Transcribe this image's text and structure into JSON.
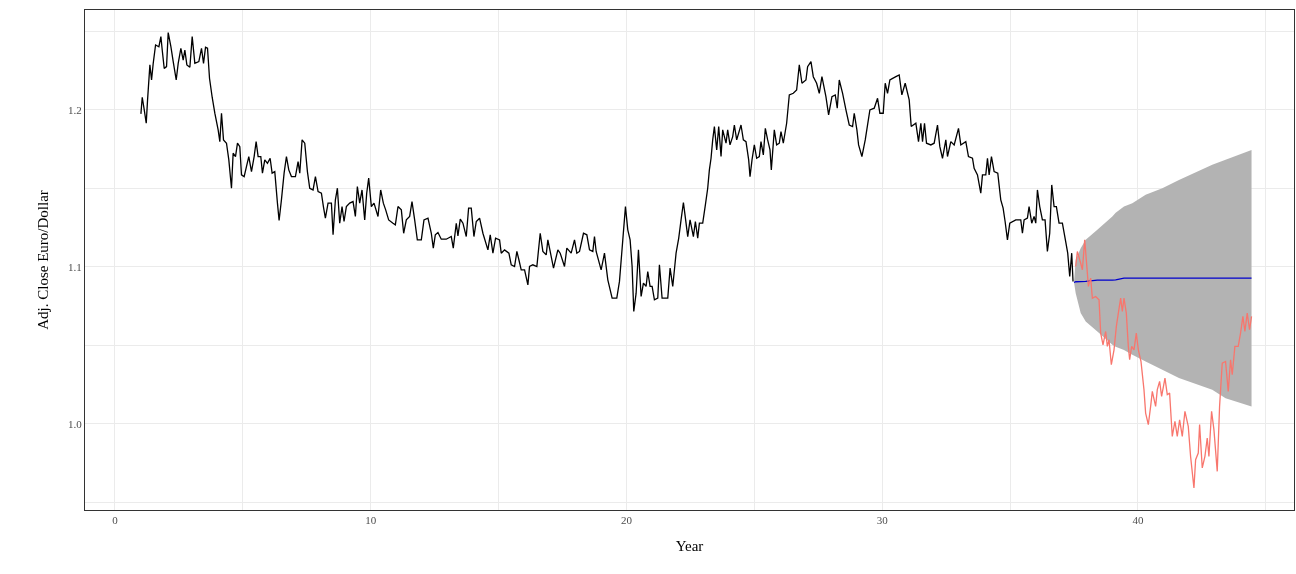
{
  "chart_data": {
    "type": "line",
    "xlabel": "Year",
    "ylabel": "Adj. Close Euro/Dollar",
    "xlim": [
      -1.17,
      46.1
    ],
    "ylim": [
      0.945,
      1.2637
    ],
    "xticks": [
      0,
      {
        "value": 5,
        "label": null
      },
      10,
      {
        "value": 15,
        "label": null
      },
      20,
      {
        "value": 25,
        "label": null
      },
      30,
      {
        "value": 35,
        "label": null
      },
      40,
      {
        "value": 45,
        "label": null
      }
    ],
    "yticks": [
      {
        "value": 0.95,
        "label": null
      },
      {
        "value": 1.0,
        "label": "1.0"
      },
      {
        "value": 1.05,
        "label": null
      },
      {
        "value": 1.1,
        "label": "1.1"
      },
      {
        "value": 1.15,
        "label": null
      },
      {
        "value": 1.2,
        "label": "1.2"
      },
      {
        "value": 1.25,
        "label": null
      }
    ],
    "grid": true,
    "marker": "none",
    "line_style": "solid",
    "series": [
      {
        "color": "#000000",
        "x": [
          1.016,
          1.068,
          1.146,
          1.224,
          1.276,
          1.367,
          1.432,
          1.497,
          1.589,
          1.719,
          1.797,
          1.849,
          1.927,
          2.018,
          2.083,
          2.188,
          2.279,
          2.396,
          2.474,
          2.578,
          2.669,
          2.734,
          2.813,
          2.93,
          3.021,
          3.125,
          3.281,
          3.385,
          3.464,
          3.542,
          3.62,
          3.698,
          3.802,
          3.906,
          4.036,
          4.102,
          4.167,
          4.245,
          4.362,
          4.453,
          4.557,
          4.622,
          4.714,
          4.792,
          4.883,
          4.948,
          5.052,
          5.143,
          5.234,
          5.339,
          5.443,
          5.521,
          5.599,
          5.703,
          5.768,
          5.859,
          5.964,
          6.068,
          6.146,
          6.25,
          6.354,
          6.419,
          6.51,
          6.615,
          6.706,
          6.797,
          6.901,
          7.057,
          7.161,
          7.227,
          7.318,
          7.422,
          7.526,
          7.617,
          7.747,
          7.839,
          7.943,
          8.073,
          8.151,
          8.229,
          8.333,
          8.464,
          8.529,
          8.62,
          8.698,
          8.789,
          8.88,
          8.958,
          9.049,
          9.18,
          9.31,
          9.401,
          9.479,
          9.57,
          9.661,
          9.766,
          9.844,
          9.922,
          10.026,
          10.13,
          10.286,
          10.391,
          10.495,
          10.586,
          10.703,
          10.872,
          10.964,
          11.068,
          11.198,
          11.289,
          11.393,
          11.523,
          11.615,
          11.719,
          11.823,
          11.979,
          12.083,
          12.24,
          12.37,
          12.448,
          12.526,
          12.63,
          12.76,
          12.956,
          13.151,
          13.229,
          13.346,
          13.411,
          13.503,
          13.607,
          13.737,
          13.828,
          13.932,
          14.036,
          14.128,
          14.258,
          14.388,
          14.583,
          14.674,
          14.779,
          14.883,
          15.039,
          15.104,
          15.234,
          15.404,
          15.495,
          15.625,
          15.716,
          15.794,
          15.885,
          16.016,
          16.146,
          16.211,
          16.341,
          16.497,
          16.628,
          16.732,
          16.862,
          16.927,
          17.018,
          17.148,
          17.318,
          17.409,
          17.578,
          17.669,
          17.839,
          17.969,
          18.06,
          18.164,
          18.32,
          18.451,
          18.555,
          18.685,
          18.75,
          18.815,
          19.01,
          19.141,
          19.271,
          19.44,
          19.622,
          19.727,
          19.857,
          19.961,
          20.052,
          20.143,
          20.221,
          20.286,
          20.378,
          20.469,
          20.573,
          20.664,
          20.768,
          20.833,
          20.924,
          21.003,
          21.094,
          21.224,
          21.289,
          21.393,
          21.615,
          21.706,
          21.81,
          21.94,
          22.044,
          22.135,
          22.227,
          22.305,
          22.396,
          22.487,
          22.617,
          22.695,
          22.786,
          22.852,
          22.982,
          23.086,
          23.177,
          23.242,
          23.307,
          23.372,
          23.438,
          23.529,
          23.607,
          23.698,
          23.763,
          23.893,
          23.958,
          24.049,
          24.154,
          24.219,
          24.31,
          24.479,
          24.57,
          24.674,
          24.779,
          24.831,
          24.909,
          25.0,
          25.091,
          25.195,
          25.26,
          25.352,
          25.43,
          25.521,
          25.612,
          25.664,
          25.781,
          25.872,
          25.977,
          26.042,
          26.133,
          26.263,
          26.367,
          26.523,
          26.654,
          26.758,
          26.862,
          27.018,
          27.083,
          27.214,
          27.305,
          27.435,
          27.539,
          27.643,
          27.799,
          27.904,
          28.034,
          28.164,
          28.242,
          28.32,
          28.451,
          28.581,
          28.711,
          28.841,
          28.906,
          29.01,
          29.076,
          29.206,
          29.336,
          29.518,
          29.688,
          29.818,
          29.909,
          30.039,
          30.117,
          30.208,
          30.299,
          30.534,
          30.664,
          30.768,
          30.898,
          31.055,
          31.133,
          31.315,
          31.419,
          31.51,
          31.576,
          31.654,
          31.732,
          31.901,
          32.031,
          32.161,
          32.253,
          32.357,
          32.487,
          32.552,
          32.682,
          32.813,
          32.982,
          33.073,
          33.268,
          33.372,
          33.529,
          33.594,
          33.724,
          33.854,
          33.919,
          34.049,
          34.115,
          34.18,
          34.271,
          34.375,
          34.518,
          34.635,
          34.727,
          34.805,
          34.896,
          34.987,
          35.221,
          35.417,
          35.482,
          35.547,
          35.677,
          35.742,
          35.846,
          35.938,
          36.003,
          36.068,
          36.159,
          36.263,
          36.367,
          36.458,
          36.549,
          36.628,
          36.719,
          36.81,
          36.914,
          37.044,
          37.174,
          37.253,
          37.331,
          37.409,
          37.461
        ],
        "values": [
          1.1975,
          1.2081,
          1.2,
          1.1915,
          1.2064,
          1.2287,
          1.2191,
          1.2297,
          1.2414,
          1.2403,
          1.2467,
          1.2382,
          1.2265,
          1.2276,
          1.2493,
          1.2403,
          1.2308,
          1.2191,
          1.2297,
          1.2393,
          1.2318,
          1.2382,
          1.2287,
          1.2272,
          1.2467,
          1.2297,
          1.2308,
          1.2393,
          1.2297,
          1.2399,
          1.2393,
          1.2202,
          1.2081,
          1.1979,
          1.1873,
          1.1798,
          1.1979,
          1.1809,
          1.1788,
          1.1682,
          1.1501,
          1.1724,
          1.1703,
          1.1788,
          1.1766,
          1.1586,
          1.1575,
          1.1639,
          1.1703,
          1.1607,
          1.1703,
          1.1798,
          1.1703,
          1.1703,
          1.1597,
          1.1682,
          1.166,
          1.1692,
          1.1597,
          1.1607,
          1.1406,
          1.1295,
          1.1427,
          1.1597,
          1.1703,
          1.1618,
          1.1575,
          1.1575,
          1.1671,
          1.1597,
          1.1809,
          1.1788,
          1.1607,
          1.1501,
          1.149,
          1.1575,
          1.148,
          1.1469,
          1.1384,
          1.131,
          1.1406,
          1.1406,
          1.1204,
          1.1427,
          1.1501,
          1.1278,
          1.1384,
          1.1289,
          1.1384,
          1.1406,
          1.1416,
          1.1321,
          1.1512,
          1.1406,
          1.149,
          1.1299,
          1.1469,
          1.1565,
          1.1384,
          1.1406,
          1.1321,
          1.149,
          1.1406,
          1.1363,
          1.1299,
          1.1278,
          1.1268,
          1.1384,
          1.1363,
          1.1214,
          1.1299,
          1.1321,
          1.1416,
          1.1299,
          1.1172,
          1.1172,
          1.1299,
          1.131,
          1.1214,
          1.1119,
          1.1204,
          1.1219,
          1.1176,
          1.1176,
          1.1193,
          1.1119,
          1.1278,
          1.1197,
          1.1304,
          1.1278,
          1.1193,
          1.1374,
          1.1374,
          1.1193,
          1.1289,
          1.131,
          1.1214,
          1.1108,
          1.1204,
          1.1087,
          1.1183,
          1.1172,
          1.1087,
          1.1108,
          1.1087,
          1.1013,
          1.1002,
          1.1098,
          1.1045,
          1.0981,
          1.0981,
          1.0885,
          1.1002,
          1.1013,
          1.1002,
          1.1214,
          1.1098,
          1.1076,
          1.1172,
          1.1098,
          1.0992,
          1.1108,
          1.1087,
          1.1002,
          1.1119,
          1.1087,
          1.1172,
          1.1087,
          1.1098,
          1.1214,
          1.1204,
          1.1108,
          1.1098,
          1.1193,
          1.1098,
          1.0981,
          1.1087,
          1.0917,
          1.08,
          1.08,
          1.0907,
          1.1172,
          1.1384,
          1.1236,
          1.1172,
          1.1002,
          1.0715,
          1.0832,
          1.1108,
          1.0811,
          1.0896,
          1.0875,
          1.097,
          1.0875,
          1.0875,
          1.079,
          1.08,
          1.1013,
          1.08,
          1.08,
          1.0992,
          1.0875,
          1.1087,
          1.1183,
          1.1299,
          1.141,
          1.131,
          1.1193,
          1.1299,
          1.1193,
          1.1289,
          1.1183,
          1.1278,
          1.1278,
          1.1395,
          1.1501,
          1.1618,
          1.1692,
          1.1809,
          1.1894,
          1.1745,
          1.1894,
          1.1703,
          1.1873,
          1.1788,
          1.1873,
          1.1777,
          1.183,
          1.1904,
          1.1809,
          1.1904,
          1.1809,
          1.1798,
          1.1682,
          1.1575,
          1.1682,
          1.1777,
          1.1692,
          1.1703,
          1.1798,
          1.1713,
          1.1883,
          1.1809,
          1.1745,
          1.1618,
          1.1873,
          1.1777,
          1.1788,
          1.1862,
          1.1788,
          1.1915,
          1.2096,
          1.2106,
          1.2127,
          1.2287,
          1.217,
          1.2191,
          1.2276,
          1.2308,
          1.2212,
          1.217,
          1.2106,
          1.2212,
          1.2085,
          1.1968,
          1.2085,
          1.2096,
          1.2011,
          1.2191,
          1.2106,
          1.2,
          1.1904,
          1.1894,
          1.1979,
          1.1873,
          1.1777,
          1.1703,
          1.1809,
          1.2,
          1.2011,
          1.2074,
          1.1979,
          1.1979,
          1.217,
          1.2106,
          1.2191,
          1.2212,
          1.2223,
          1.2096,
          1.217,
          1.2064,
          1.1894,
          1.1915,
          1.1798,
          1.1915,
          1.1798,
          1.1915,
          1.1788,
          1.1777,
          1.1788,
          1.1904,
          1.1766,
          1.1692,
          1.1809,
          1.1703,
          1.1798,
          1.1777,
          1.1883,
          1.1777,
          1.1798,
          1.1703,
          1.1692,
          1.1628,
          1.1586,
          1.1469,
          1.1586,
          1.1586,
          1.1692,
          1.1586,
          1.1703,
          1.1607,
          1.1597,
          1.1427,
          1.1374,
          1.1289,
          1.1172,
          1.1278,
          1.1299,
          1.1299,
          1.1214,
          1.1299,
          1.131,
          1.1384,
          1.1278,
          1.1321,
          1.1278,
          1.149,
          1.1384,
          1.1299,
          1.1299,
          1.1098,
          1.1214,
          1.1522,
          1.1384,
          1.1384,
          1.1278,
          1.1278,
          1.1161,
          1.1087,
          1.0938,
          1.1087,
          1.0907
        ]
      },
      {
        "color": "#0000cd",
        "x": [
          37.5,
          37.565,
          37.76,
          37.956,
          38.411,
          38.997,
          39.128,
          39.453,
          39.779,
          40.299,
          40.951,
          41.602,
          42.904,
          43.424,
          44.44
        ],
        "values": [
          1.09,
          1.0905,
          1.0906,
          1.0907,
          1.0915,
          1.0915,
          1.0917,
          1.0928,
          1.0928,
          1.0928,
          1.0928,
          1.0928,
          1.0928,
          1.0928,
          1.0928
        ],
        "upper": [
          1.09,
          1.1045,
          1.1119,
          1.1172,
          1.1236,
          1.1321,
          1.1345,
          1.1385,
          1.1406,
          1.1459,
          1.1501,
          1.1554,
          1.165,
          1.1682,
          1.1745
        ],
        "lower": [
          1.09,
          1.0832,
          1.0705,
          1.0652,
          1.0588,
          1.0503,
          1.049,
          1.047,
          1.0439,
          1.0397,
          1.0344,
          1.0291,
          1.0217,
          1.0163,
          1.011
        ]
      },
      {
        "color": "#f8766d",
        "x": [
          37.565,
          37.63,
          37.76,
          37.826,
          37.917,
          38.021,
          38.06,
          38.151,
          38.216,
          38.346,
          38.477,
          38.542,
          38.633,
          38.737,
          38.802,
          38.867,
          38.958,
          39.063,
          39.154,
          39.232,
          39.323,
          39.388,
          39.453,
          39.544,
          39.622,
          39.674,
          39.753,
          39.844,
          39.935,
          40.013,
          40.117,
          40.234,
          40.299,
          40.404,
          40.495,
          40.56,
          40.69,
          40.755,
          40.846,
          40.924,
          41.055,
          41.146,
          41.237,
          41.341,
          41.445,
          41.536,
          41.628,
          41.732,
          41.836,
          41.966,
          42.057,
          42.188,
          42.253,
          42.357,
          42.409,
          42.513,
          42.617,
          42.708,
          42.773,
          42.878,
          42.969,
          43.099,
          43.19,
          43.294,
          43.424,
          43.529,
          43.62,
          43.685,
          43.789,
          43.919,
          44.01,
          44.102,
          44.18,
          44.271,
          44.362,
          44.44
        ],
        "values": [
          1.1002,
          1.1098,
          1.1023,
          1.0981,
          1.1172,
          1.096,
          1.0875,
          1.0928,
          1.08,
          1.0811,
          1.079,
          1.0577,
          1.0503,
          1.0588,
          1.0493,
          1.0535,
          1.0376,
          1.0471,
          1.062,
          1.0705,
          1.08,
          1.0715,
          1.08,
          1.0705,
          1.0493,
          1.0408,
          1.0493,
          1.0471,
          1.0577,
          1.0471,
          1.0397,
          1.0217,
          1.0068,
          0.9994,
          1.011,
          1.0206,
          1.011,
          1.0217,
          1.027,
          1.0174,
          1.0291,
          1.0185,
          1.0195,
          0.9919,
          1.0015,
          0.9919,
          1.0025,
          0.9919,
          1.0079,
          0.9983,
          0.9792,
          0.959,
          0.9771,
          0.9813,
          0.9994,
          0.9718,
          0.9792,
          0.9909,
          0.9792,
          1.0079,
          0.9962,
          0.9696,
          1.011,
          1.0386,
          1.0397,
          1.0206,
          1.0408,
          1.0312,
          1.0493,
          1.0493,
          1.0577,
          1.0684,
          1.0588,
          1.0705,
          1.0599,
          1.0684
        ]
      }
    ]
  }
}
